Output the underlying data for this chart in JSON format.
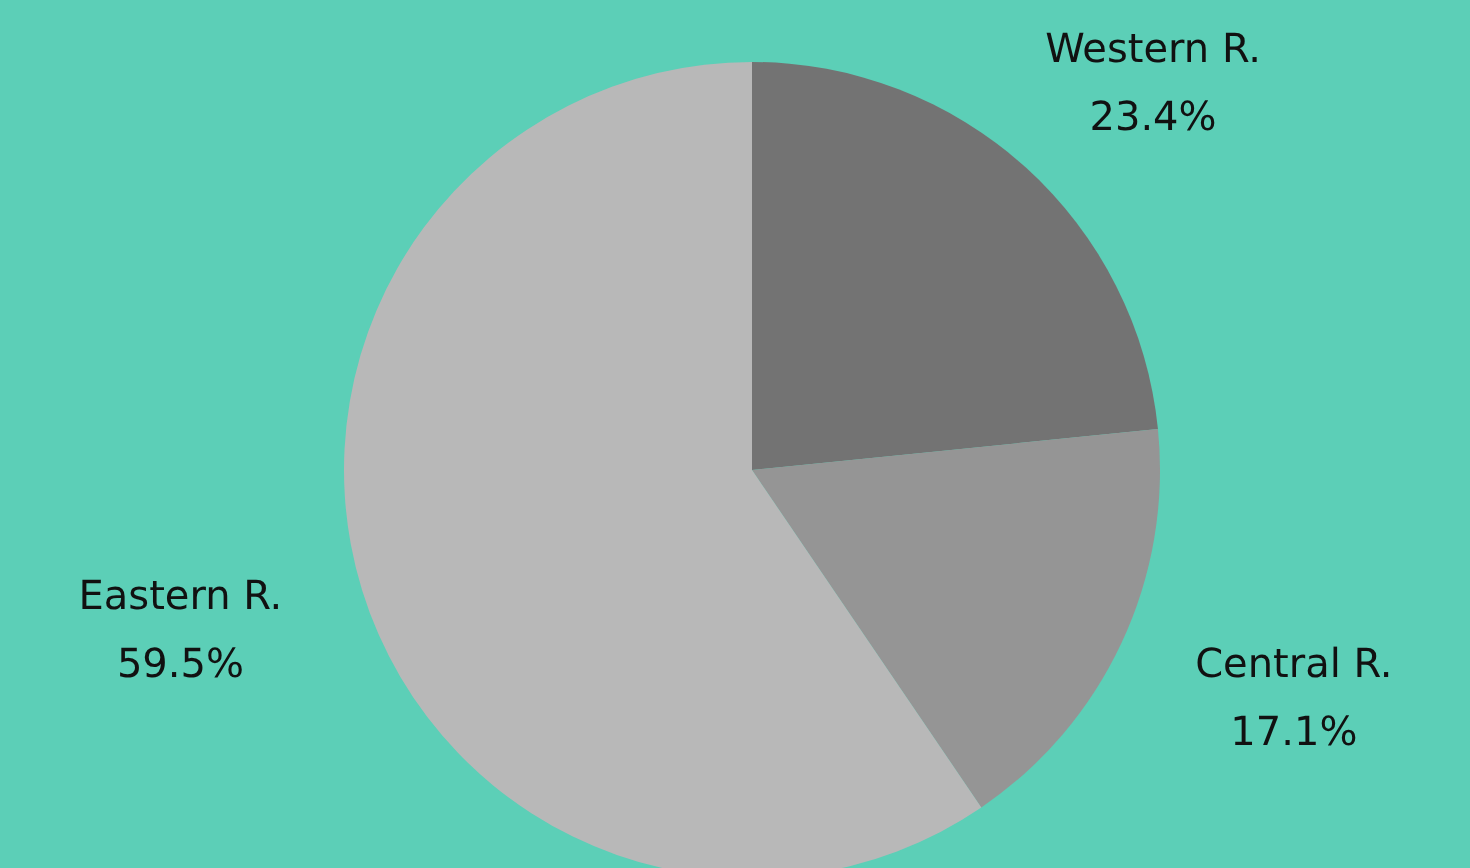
{
  "chart_data": {
    "type": "pie",
    "categories": [
      "Western R.",
      "Central R.",
      "Eastern R."
    ],
    "values": [
      23.4,
      17.1,
      59.5
    ],
    "value_labels": [
      "23.4%",
      "17.1%",
      "59.5%"
    ],
    "colors": [
      "#737373",
      "#959595",
      "#b8b8b8"
    ]
  }
}
